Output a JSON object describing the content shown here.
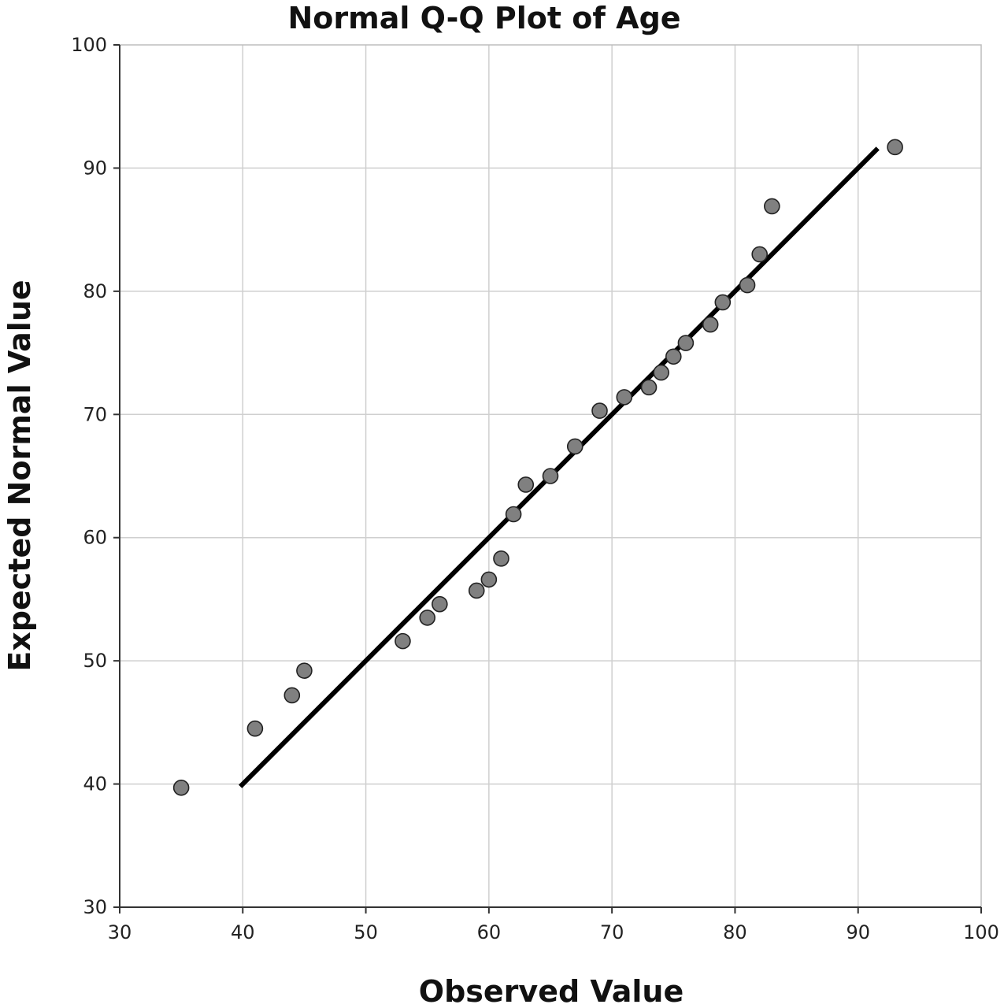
{
  "chart_data": {
    "type": "scatter",
    "title": "Normal Q-Q Plot of Age",
    "xlabel": "Observed Value",
    "ylabel": "Expected Normal Value",
    "xlim": [
      30,
      100
    ],
    "ylim": [
      30,
      100
    ],
    "xticks": [
      "30",
      "40",
      "50",
      "60",
      "70",
      "80",
      "90",
      "100"
    ],
    "yticks": [
      "30",
      "40",
      "50",
      "60",
      "70",
      "80",
      "90",
      "100"
    ],
    "grid": true,
    "legend": "none",
    "point_color": "#808080",
    "line_color": "#000000",
    "points": [
      {
        "x": 35,
        "y": 39.7
      },
      {
        "x": 41,
        "y": 44.5
      },
      {
        "x": 44,
        "y": 47.2
      },
      {
        "x": 45,
        "y": 49.2
      },
      {
        "x": 53,
        "y": 51.6
      },
      {
        "x": 55,
        "y": 53.5
      },
      {
        "x": 56,
        "y": 54.6
      },
      {
        "x": 59,
        "y": 55.7
      },
      {
        "x": 60,
        "y": 56.6
      },
      {
        "x": 61,
        "y": 58.3
      },
      {
        "x": 62,
        "y": 61.9
      },
      {
        "x": 63,
        "y": 64.3
      },
      {
        "x": 65,
        "y": 65.0
      },
      {
        "x": 67,
        "y": 67.4
      },
      {
        "x": 69,
        "y": 70.3
      },
      {
        "x": 71,
        "y": 71.4
      },
      {
        "x": 73,
        "y": 72.2
      },
      {
        "x": 74,
        "y": 73.4
      },
      {
        "x": 75,
        "y": 74.7
      },
      {
        "x": 76,
        "y": 75.8
      },
      {
        "x": 78,
        "y": 77.3
      },
      {
        "x": 79,
        "y": 79.1
      },
      {
        "x": 81,
        "y": 80.5
      },
      {
        "x": 82,
        "y": 83.0
      },
      {
        "x": 83,
        "y": 86.9
      },
      {
        "x": 93,
        "y": 91.7
      }
    ],
    "reference_line": {
      "x": [
        39.8,
        91.6
      ],
      "y": [
        39.8,
        91.6
      ]
    }
  }
}
